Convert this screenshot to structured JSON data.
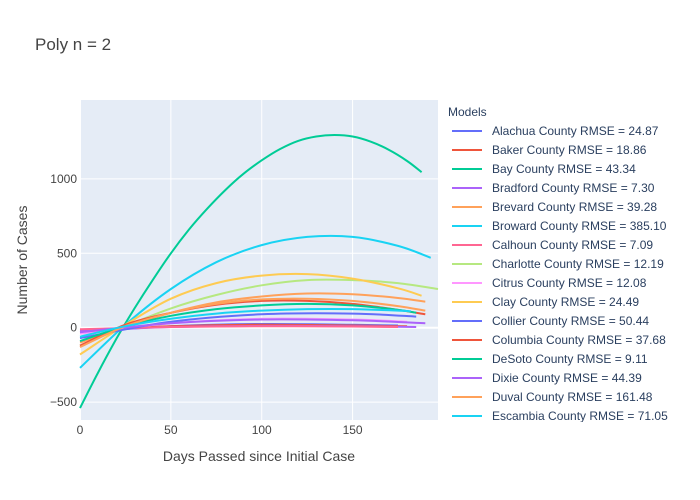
{
  "chart_data": {
    "type": "line",
    "title": "Poly n = 2",
    "xlabel": "Days Passed since Initial Case",
    "ylabel": "Number of Cases",
    "xlim": [
      0,
      197
    ],
    "ylim": [
      -620,
      1530
    ],
    "xticks": [
      0,
      50,
      100,
      150
    ],
    "yticks": [
      -500,
      0,
      500,
      1000
    ],
    "grid": true,
    "legend": {
      "title": "Models",
      "placement": "right"
    },
    "series": [
      {
        "name": "Alachua County RMSE = 24.87",
        "color": "#636efa",
        "x": [
          0,
          50,
          100,
          150,
          175
        ],
        "y": [
          -30,
          10,
          25,
          20,
          15
        ]
      },
      {
        "name": "Baker County RMSE = 18.86",
        "color": "#EF553B",
        "x": [
          0,
          50,
          100,
          150,
          180
        ],
        "y": [
          -15,
          10,
          20,
          15,
          10
        ]
      },
      {
        "name": "Bay County RMSE = 43.34",
        "color": "#00cc96",
        "x": [
          0,
          10,
          20,
          30,
          40,
          50,
          60,
          70,
          80,
          90,
          100,
          110,
          120,
          130,
          140,
          150,
          160,
          170,
          180,
          188
        ],
        "y": [
          -540,
          -300,
          -75,
          130,
          320,
          500,
          660,
          800,
          925,
          1035,
          1125,
          1200,
          1255,
          1285,
          1295,
          1285,
          1250,
          1195,
          1120,
          1045
        ]
      },
      {
        "name": "Bradford County RMSE = 7.30",
        "color": "#ab63fa",
        "x": [
          0,
          50,
          100,
          150,
          185
        ],
        "y": [
          -20,
          5,
          12,
          10,
          5
        ]
      },
      {
        "name": "Brevard County RMSE = 39.28",
        "color": "#FFA15A",
        "x": [
          0,
          25,
          50,
          75,
          100,
          125,
          150,
          175,
          190
        ],
        "y": [
          -100,
          10,
          100,
          170,
          210,
          230,
          225,
          200,
          175
        ]
      },
      {
        "name": "Broward County RMSE = 385.10",
        "color": "#19d3f3",
        "x": [
          0,
          25,
          50,
          75,
          100,
          125,
          150,
          175,
          193
        ],
        "y": [
          -270,
          20,
          260,
          440,
          555,
          610,
          610,
          550,
          470
        ]
      },
      {
        "name": "Calhoun County RMSE = 7.09",
        "color": "#FF6692",
        "x": [
          0,
          50,
          100,
          150,
          175
        ],
        "y": [
          -10,
          5,
          10,
          8,
          5
        ]
      },
      {
        "name": "Charlotte County RMSE = 12.19",
        "color": "#B6E880",
        "x": [
          0,
          25,
          50,
          75,
          100,
          125,
          150,
          175,
          197
        ],
        "y": [
          -120,
          10,
          130,
          220,
          285,
          320,
          320,
          300,
          260
        ]
      },
      {
        "name": "Citrus County RMSE = 12.08",
        "color": "#FF97FF",
        "x": [
          0,
          50,
          100,
          150,
          180
        ],
        "y": [
          -40,
          30,
          60,
          55,
          40
        ]
      },
      {
        "name": "Clay County RMSE = 24.49",
        "color": "#FECB52",
        "x": [
          0,
          25,
          50,
          75,
          100,
          125,
          150,
          175,
          188
        ],
        "y": [
          -180,
          20,
          195,
          300,
          350,
          360,
          330,
          265,
          215
        ]
      },
      {
        "name": "Collier County RMSE = 50.44",
        "color": "#636efa",
        "x": [
          0,
          50,
          100,
          150,
          185
        ],
        "y": [
          -70,
          40,
          90,
          95,
          75
        ]
      },
      {
        "name": "Columbia County RMSE = 37.68",
        "color": "#EF553B",
        "x": [
          0,
          25,
          50,
          75,
          100,
          125,
          150,
          175,
          190
        ],
        "y": [
          -120,
          20,
          100,
          155,
          180,
          180,
          160,
          120,
          90
        ]
      },
      {
        "name": "DeSoto County RMSE = 9.11",
        "color": "#00cc96",
        "x": [
          0,
          25,
          50,
          75,
          100,
          125,
          150,
          175,
          185
        ],
        "y": [
          -90,
          10,
          80,
          125,
          150,
          160,
          150,
          120,
          100
        ]
      },
      {
        "name": "Dixie County RMSE = 44.39",
        "color": "#ab63fa",
        "x": [
          0,
          50,
          100,
          150,
          190
        ],
        "y": [
          -30,
          30,
          55,
          50,
          30
        ]
      },
      {
        "name": "Duval County RMSE = 161.48",
        "color": "#FFA15A",
        "x": [
          0,
          25,
          50,
          75,
          100,
          125,
          150,
          175,
          190
        ],
        "y": [
          -130,
          10,
          100,
          160,
          190,
          195,
          180,
          145,
          115
        ]
      },
      {
        "name": "Escambia County RMSE = 71.05",
        "color": "#19d3f3",
        "x": [
          0,
          25,
          50,
          75,
          100,
          125,
          150,
          175,
          182
        ],
        "y": [
          -60,
          10,
          60,
          95,
          115,
          125,
          125,
          115,
          110
        ]
      }
    ]
  }
}
